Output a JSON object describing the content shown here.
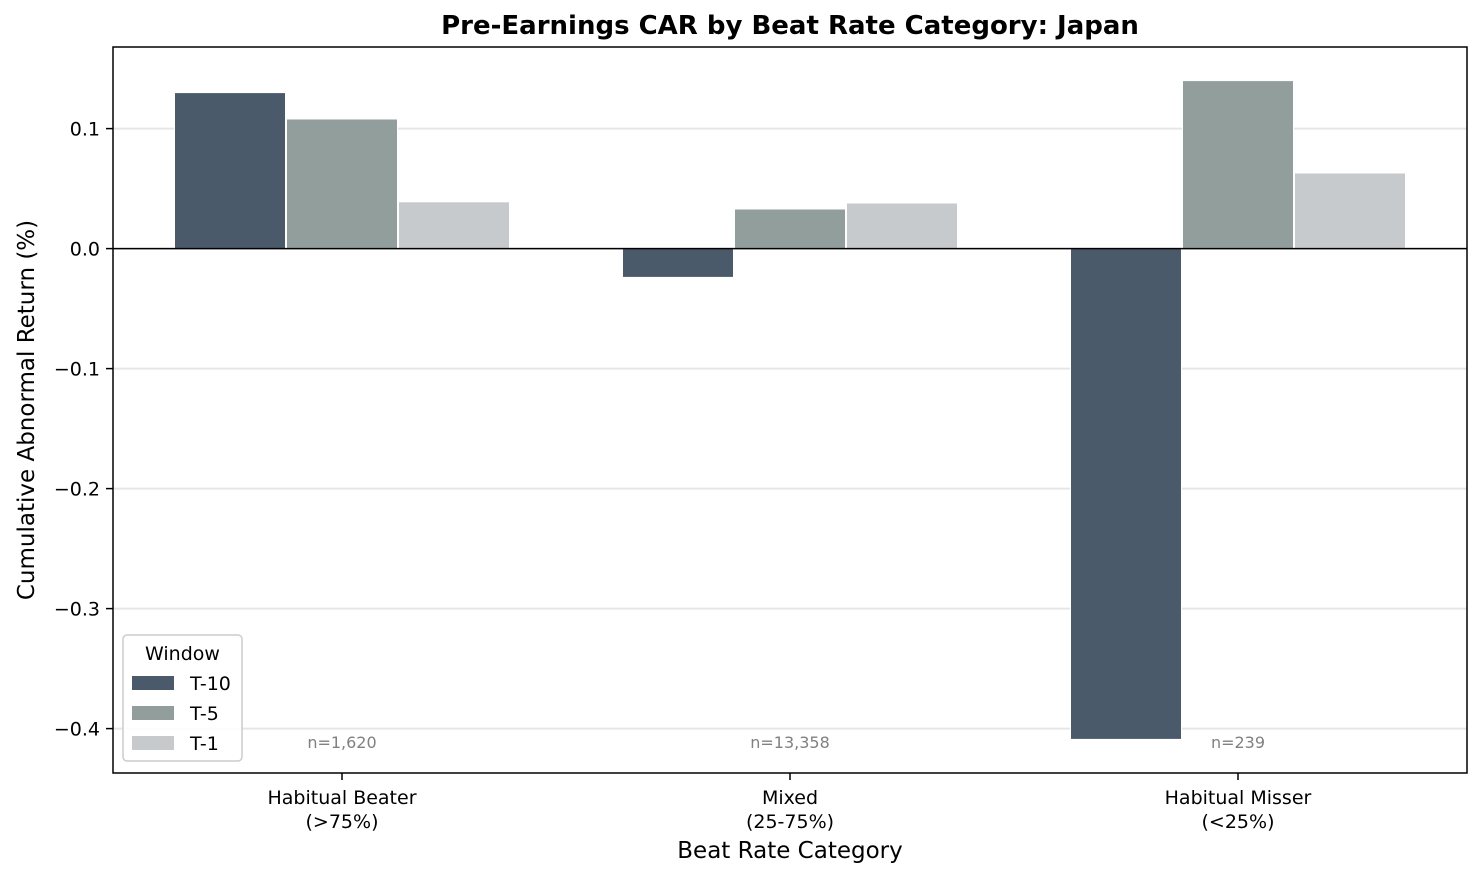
{
  "chart_data": {
    "type": "bar",
    "title": "Pre-Earnings CAR by Beat Rate Category: Japan",
    "xlabel": "Beat Rate Category",
    "ylabel": "Cumulative Abnormal Return (%)",
    "categories": [
      [
        "Habitual Beater",
        "(>75%)"
      ],
      [
        "Mixed",
        "(25-75%)"
      ],
      [
        "Habitual Misser",
        "(<25%)"
      ]
    ],
    "series": [
      {
        "name": "T-10",
        "color": "#4a5a6a",
        "values": [
          0.13,
          -0.024,
          -0.409
        ]
      },
      {
        "name": "T-5",
        "color": "#929e9c",
        "values": [
          0.108,
          0.033,
          0.14
        ]
      },
      {
        "name": "T-1",
        "color": "#c6cacc",
        "values": [
          0.039,
          0.038,
          0.063
        ]
      }
    ],
    "annotations": [
      "n=1,620",
      "n=13,358",
      "n=239"
    ],
    "ylim": [
      -0.437,
      0.168
    ],
    "yticks": [
      0.1,
      0.0,
      -0.1,
      -0.2,
      -0.3,
      -0.4
    ],
    "ytick_labels": [
      "0.1",
      "0.0",
      "−0.1",
      "−0.2",
      "−0.3",
      "−0.4"
    ],
    "grid": "y",
    "legend": {
      "title": "Window",
      "placement": "lower-left"
    }
  }
}
